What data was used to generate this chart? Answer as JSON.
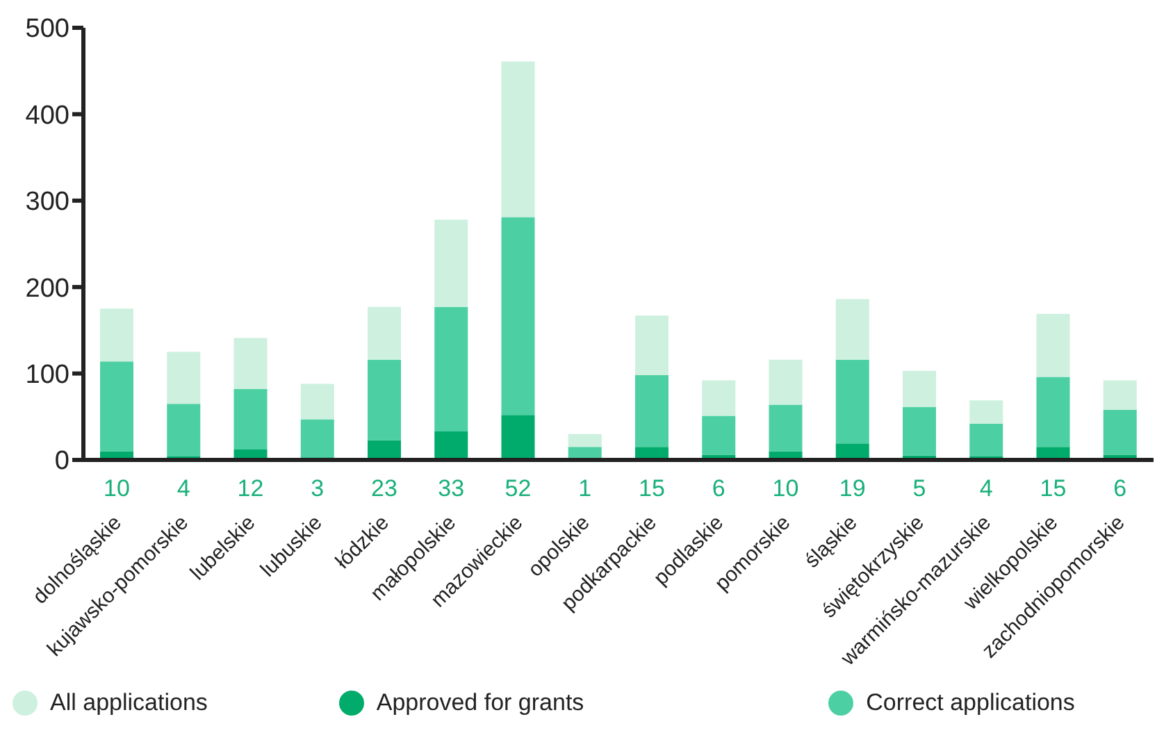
{
  "chart_data": {
    "type": "bar",
    "stacked": true,
    "categories": [
      "dolnośląskie",
      "kujawsko-pomorskie",
      "lubelskie",
      "lubuskie",
      "łódzkie",
      "małopolskie",
      "mazowieckie",
      "opolskie",
      "podkarpackie",
      "podlaskie",
      "pomorskie",
      "śląskie",
      "świętokrzyskie",
      "warmińsko-mazurskie",
      "wielkopolskie",
      "zachodniopomorskie"
    ],
    "series": [
      {
        "name": "Approved for grants",
        "color": "#00ab6b",
        "values": [
          10,
          4,
          12,
          3,
          23,
          33,
          52,
          1,
          15,
          6,
          10,
          19,
          5,
          4,
          15,
          6
        ],
        "value_labels": [
          "10",
          "4",
          "12",
          "3",
          "23",
          "33",
          "52",
          "1",
          "15",
          "6",
          "10",
          "19",
          "5",
          "4",
          "15",
          "6"
        ]
      },
      {
        "name": "Correct applications",
        "color": "#4cd0a3",
        "values": [
          104,
          61,
          70,
          44,
          93,
          144,
          229,
          14,
          83,
          45,
          54,
          97,
          56,
          38,
          81,
          52
        ]
      },
      {
        "name": "All applications",
        "color": "#cdf0df",
        "values": [
          61,
          60,
          59,
          41,
          61,
          101,
          180,
          15,
          69,
          41,
          52,
          70,
          42,
          27,
          73,
          34
        ]
      }
    ],
    "ylim": [
      0,
      500
    ],
    "yticks": [
      0,
      100,
      200,
      300,
      400,
      500
    ],
    "grid": false,
    "legend": "bottom"
  }
}
